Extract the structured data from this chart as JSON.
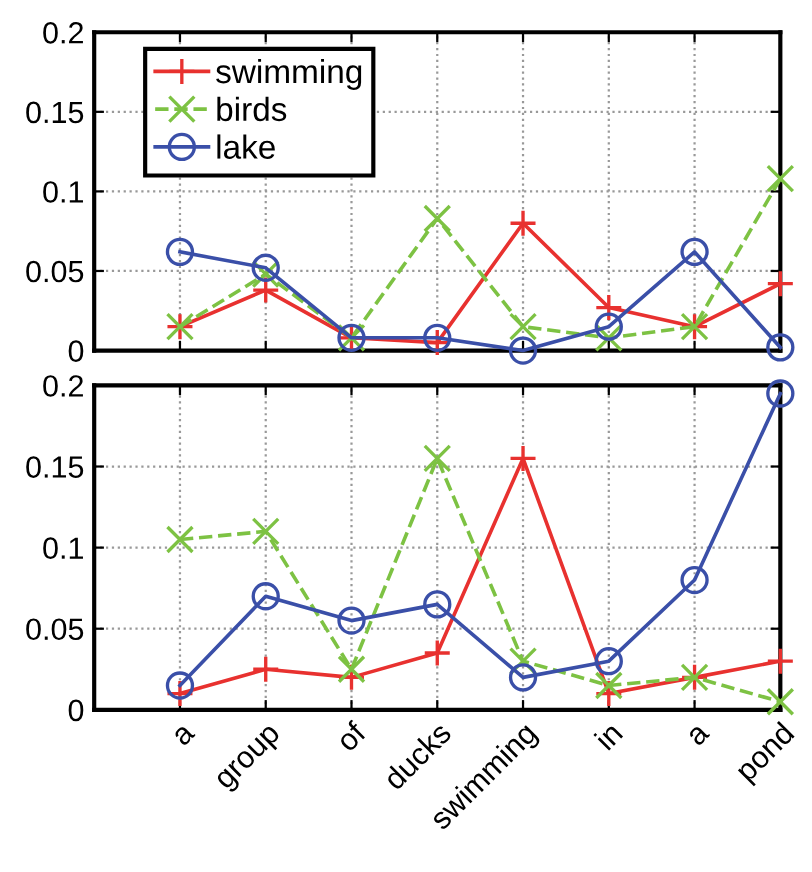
{
  "chart_data": [
    {
      "type": "line",
      "categories": [
        null,
        null,
        null,
        null,
        null,
        null,
        null,
        null
      ],
      "ylim": [
        0,
        0.2
      ],
      "yticks": [
        0,
        0.05,
        0.1,
        0.15,
        0.2
      ],
      "grid": true,
      "legend": "top left",
      "tick_labels": "y",
      "series": [
        {
          "name": "swimming",
          "color": "#e8312f",
          "marker": "plus",
          "line_style": "solid",
          "values": [
            0.015,
            0.038,
            0.008,
            0.005,
            0.08,
            0.027,
            0.015,
            0.042
          ]
        },
        {
          "name": "birds",
          "color": "#7dc243",
          "marker": "cross",
          "line_style": "dashed",
          "values": [
            0.015,
            0.048,
            0.008,
            0.083,
            0.015,
            0.008,
            0.015,
            0.108
          ]
        },
        {
          "name": "lake",
          "color": "#3a4fa8",
          "marker": "circle",
          "line_style": "solid",
          "values": [
            0.062,
            0.052,
            0.008,
            0.008,
            0,
            0.015,
            0.062,
            0.002
          ]
        }
      ]
    },
    {
      "type": "line",
      "categories": [
        "a",
        "group",
        "of",
        "ducks",
        "swimming",
        "in",
        "a",
        "pond"
      ],
      "ylim": [
        0,
        0.2
      ],
      "yticks": [
        0,
        0.05,
        0.1,
        0.15,
        0.2
      ],
      "grid": true,
      "series": [
        {
          "color": "#e8312f",
          "marker": "plus",
          "line_style": "solid",
          "values": [
            0.01,
            0.025,
            0.02,
            0.035,
            0.155,
            0.01,
            0.02,
            0.03
          ]
        },
        {
          "color": "#7dc243",
          "marker": "cross",
          "line_style": "dashed",
          "values": [
            0.105,
            0.11,
            0.025,
            0.155,
            0.03,
            0.015,
            0.02,
            0.005
          ]
        },
        {
          "color": "#3a4fa8",
          "marker": "circle",
          "line_style": "solid",
          "values": [
            0.015,
            0.07,
            0.055,
            0.065,
            0.02,
            0.03,
            0.08,
            0.195
          ]
        }
      ]
    }
  ]
}
